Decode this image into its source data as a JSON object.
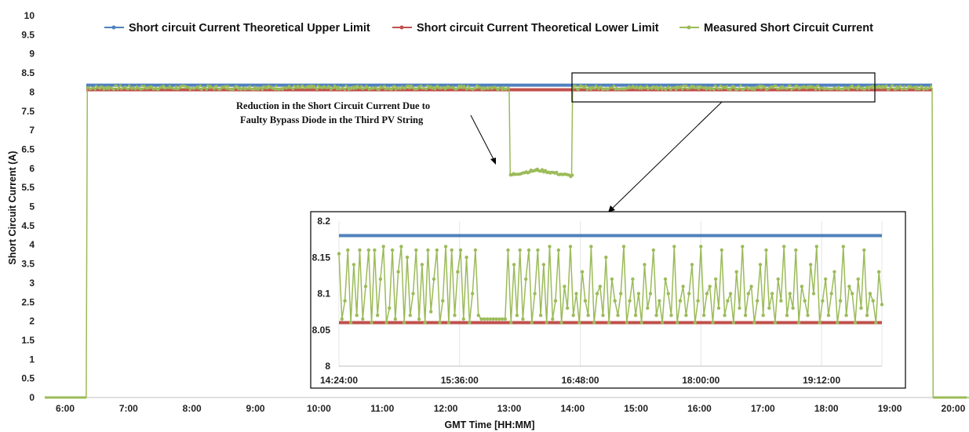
{
  "colors": {
    "upper": "#4f81bd",
    "lower": "#c0504d",
    "measured": "#9bbb59"
  },
  "chart_data": [
    {
      "type": "line",
      "xlabel": "GMT Time [HH:MM]",
      "ylabel": "Short Circuit Current (A)",
      "x_ticks": [
        "6:00",
        "7:00",
        "8:00",
        "9:00",
        "10:00",
        "11:00",
        "12:00",
        "13:00",
        "14:00",
        "15:00",
        "16:00",
        "17:00",
        "18:00",
        "19:00",
        "20:00"
      ],
      "y_ticks": [
        "0",
        "0.5",
        "1",
        "1.5",
        "2",
        "2.5",
        "3",
        "3.5",
        "4",
        "4.5",
        "5",
        "5.5",
        "6",
        "6.5",
        "7",
        "7.5",
        "8",
        "8.5",
        "9",
        "9.5",
        "10"
      ],
      "ylim": [
        0,
        10
      ],
      "xlim_hours": [
        6,
        20.8
      ],
      "legend_position": "top",
      "series": [
        {
          "name": "Short circuit Current Theoretical Upper Limit",
          "x": [
            "6:20",
            "19:40"
          ],
          "values": [
            8.18,
            8.18
          ]
        },
        {
          "name": "Short circuit Current Theoretical Lower Limit",
          "x": [
            "6:20",
            "19:40"
          ],
          "values": [
            8.06,
            8.06
          ]
        },
        {
          "name": "Measured Short Circuit Current",
          "x": [
            "6:00",
            "6:20",
            "6:21",
            "13:00",
            "13:01",
            "13:30",
            "13:59",
            "14:00",
            "19:40",
            "19:41",
            "20:48"
          ],
          "values": [
            0,
            0,
            8.1,
            8.1,
            5.8,
            5.95,
            5.8,
            8.1,
            8.1,
            0,
            0
          ]
        }
      ],
      "annotation": [
        "Reduction in the Short Circuit Current Due to",
        "Faulty Bypass Diode in the Third PV String"
      ]
    },
    {
      "type": "line",
      "title": "",
      "x_ticks": [
        "14:24:00",
        "15:36:00",
        "16:48:00",
        "18:00:00",
        "19:12:00"
      ],
      "y_ticks": [
        "8",
        "8.05",
        "8.1",
        "8.15",
        "8.2"
      ],
      "ylim": [
        8,
        8.2
      ],
      "xlim_hours": [
        14.4,
        19.8
      ],
      "upper_value": 8.18,
      "lower_value": 8.06,
      "low_segment": {
        "start": "15:04",
        "end": "15:17",
        "value": 8.065
      },
      "measured_values": [
        8.155,
        8.065,
        8.09,
        8.16,
        8.06,
        8.14,
        8.07,
        8.16,
        8.065,
        8.11,
        8.16,
        8.06,
        8.16,
        8.07,
        8.12,
        8.165,
        8.06,
        8.08,
        8.16,
        8.065,
        8.13,
        8.165,
        8.06,
        8.15,
        8.07,
        8.1,
        8.16,
        8.065,
        8.14,
        8.06,
        8.16,
        8.075,
        8.12,
        8.16,
        8.06,
        8.09,
        8.165,
        8.06,
        8.16,
        8.07,
        8.13,
        8.16,
        8.065,
        8.15,
        8.06,
        8.1,
        8.16,
        8.07,
        8.065,
        8.065,
        8.065,
        8.065,
        8.065,
        8.065,
        8.065,
        8.065,
        8.065,
        8.16,
        8.06,
        8.14,
        8.07,
        8.16,
        8.065,
        8.12,
        8.16,
        8.06,
        8.1,
        8.16,
        8.07,
        8.14,
        8.06,
        8.165,
        8.065,
        8.09,
        8.16,
        8.06,
        8.11,
        8.08,
        8.165,
        8.07,
        8.1,
        8.06,
        8.13,
        8.09,
        8.07,
        8.165,
        8.06,
        8.1,
        8.11,
        8.07,
        8.15,
        8.06,
        8.12,
        8.09,
        8.07,
        8.1,
        8.165,
        8.06,
        8.09,
        8.12,
        8.07,
        8.1,
        8.06,
        8.14,
        8.08,
        8.1,
        8.16,
        8.07,
        8.09,
        8.06,
        8.12,
        8.1,
        8.07,
        8.165,
        8.06,
        8.09,
        8.11,
        8.07,
        8.1,
        8.14,
        8.06,
        8.09,
        8.165,
        8.07,
        8.1,
        8.11,
        8.06,
        8.12,
        8.08,
        8.16,
        8.07,
        8.09,
        8.1,
        8.06,
        8.13,
        8.08,
        8.165,
        8.07,
        8.1,
        8.11,
        8.06,
        8.09,
        8.14,
        8.07,
        8.16,
        8.08,
        8.1,
        8.06,
        8.12,
        8.09,
        8.165,
        8.07,
        8.1,
        8.08,
        8.16,
        8.06,
        8.11,
        8.09,
        8.07,
        8.14,
        8.1,
        8.165,
        8.06,
        8.09,
        8.12,
        8.07,
        8.1,
        8.13,
        8.06,
        8.09,
        8.165,
        8.07,
        8.11,
        8.1,
        8.06,
        8.12,
        8.08,
        8.16,
        8.07,
        8.1,
        8.09,
        8.06,
        8.13,
        8.085
      ]
    }
  ]
}
